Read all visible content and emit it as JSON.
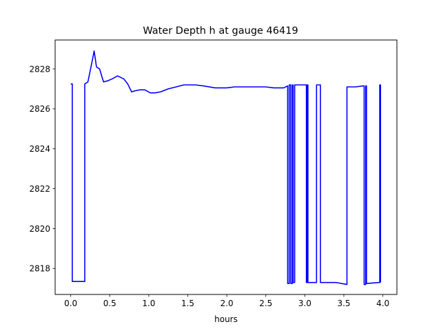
{
  "chart_data": {
    "type": "line",
    "title": "Water Depth h at gauge 46419",
    "xlabel": "hours",
    "ylabel": "",
    "xlim": [
      -0.2,
      4.18
    ],
    "ylim": [
      2816.7,
      2829.45
    ],
    "xticks": [
      0.0,
      0.5,
      1.0,
      1.5,
      2.0,
      2.5,
      3.0,
      3.5,
      4.0
    ],
    "xtick_labels": [
      "0.0",
      "0.5",
      "1.0",
      "1.5",
      "2.0",
      "2.5",
      "3.0",
      "3.5",
      "4.0"
    ],
    "yticks": [
      2818,
      2820,
      2822,
      2824,
      2826,
      2828
    ],
    "ytick_labels": [
      "2818",
      "2820",
      "2822",
      "2824",
      "2826",
      "2828"
    ],
    "grid": false,
    "series": [
      {
        "color": "#0000ff",
        "x": [
          0.0,
          0.02,
          0.02,
          0.18,
          0.18,
          0.22,
          0.27,
          0.3,
          0.33,
          0.37,
          0.42,
          0.47,
          0.53,
          0.6,
          0.68,
          0.73,
          0.78,
          0.82,
          0.88,
          0.95,
          1.02,
          1.08,
          1.15,
          1.25,
          1.35,
          1.45,
          1.6,
          1.7,
          1.85,
          2.0,
          2.1,
          2.3,
          2.5,
          2.6,
          2.73,
          2.78,
          2.78,
          2.8,
          2.8,
          2.82,
          2.82,
          2.84,
          2.84,
          2.85,
          2.85,
          2.87,
          2.87,
          3.02,
          3.02,
          3.03,
          3.03,
          3.04,
          3.04,
          3.15,
          3.15,
          3.2,
          3.2,
          3.4,
          3.54,
          3.54,
          3.65,
          3.75,
          3.76,
          3.76,
          3.78,
          3.78,
          3.79,
          3.79,
          3.95,
          3.96,
          3.96,
          3.97,
          3.97
        ],
        "y": [
          2827.25,
          2827.25,
          2817.35,
          2817.35,
          2827.25,
          2827.35,
          2828.3,
          2828.9,
          2828.1,
          2828.0,
          2827.35,
          2827.4,
          2827.5,
          2827.65,
          2827.5,
          2827.25,
          2826.85,
          2826.9,
          2826.95,
          2826.95,
          2826.8,
          2826.8,
          2826.85,
          2827.0,
          2827.1,
          2827.2,
          2827.2,
          2827.15,
          2827.05,
          2827.05,
          2827.1,
          2827.1,
          2827.1,
          2827.05,
          2827.05,
          2827.15,
          2817.25,
          2817.25,
          2827.2,
          2827.2,
          2817.25,
          2817.25,
          2827.2,
          2827.2,
          2817.3,
          2817.3,
          2827.2,
          2827.2,
          2817.3,
          2817.3,
          2827.2,
          2827.2,
          2817.3,
          2817.3,
          2827.2,
          2827.2,
          2817.3,
          2817.3,
          2817.2,
          2827.1,
          2827.1,
          2827.15,
          2827.15,
          2817.2,
          2817.2,
          2827.15,
          2827.15,
          2817.25,
          2817.3,
          2817.3,
          2827.2,
          2827.2,
          2817.3
        ]
      }
    ]
  }
}
